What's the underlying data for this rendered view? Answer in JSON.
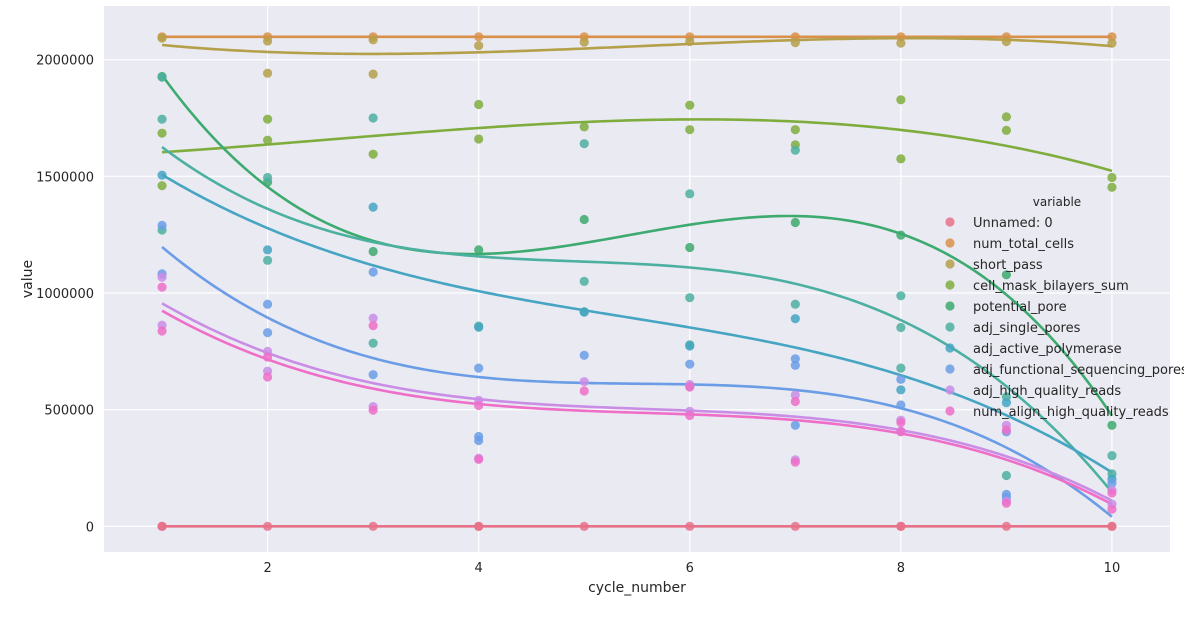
{
  "chart_data": {
    "type": "scatter",
    "style": "seaborn darkgrid lmplot with polynomial regression fits (order 3)",
    "xlabel": "cycle_number",
    "ylabel": "value",
    "xlim": [
      0.45,
      10.55
    ],
    "ylim": [
      -110000,
      2230000
    ],
    "x_ticks": [
      2,
      4,
      6,
      8,
      10
    ],
    "y_ticks": [
      0,
      500000,
      1000000,
      1500000,
      2000000
    ],
    "y_tick_labels": [
      "0",
      "500000",
      "1000000",
      "1500000",
      "2000000"
    ],
    "grid": true,
    "background_color": "#eaeaf2",
    "grid_color": "#ffffff",
    "legend_title": "variable",
    "legend_position": "right",
    "fit_order": 3,
    "x": [
      1,
      2,
      3,
      4,
      5,
      6,
      7,
      8,
      9,
      10
    ],
    "series": [
      {
        "name": "Unnamed: 0",
        "color": "#e8718a",
        "points": [
          [
            1,
            0
          ],
          [
            2,
            0
          ],
          [
            3,
            0
          ],
          [
            4,
            0
          ],
          [
            5,
            0
          ],
          [
            6,
            0
          ],
          [
            7,
            0
          ],
          [
            8,
            0
          ],
          [
            9,
            0
          ],
          [
            10,
            0
          ],
          [
            1,
            0
          ],
          [
            4,
            0
          ],
          [
            8,
            0
          ],
          [
            10,
            0
          ]
        ]
      },
      {
        "name": "num_total_cells",
        "color": "#d9904a",
        "points": [
          [
            1,
            2098000
          ],
          [
            2,
            2098000
          ],
          [
            3,
            2098000
          ],
          [
            4,
            2098000
          ],
          [
            5,
            2098000
          ],
          [
            6,
            2098000
          ],
          [
            7,
            2098000
          ],
          [
            8,
            2098000
          ],
          [
            9,
            2098000
          ],
          [
            10,
            2098000
          ]
        ]
      },
      {
        "name": "short_pass",
        "color": "#b5a04a",
        "points": [
          [
            1,
            2093000
          ],
          [
            2,
            1942000
          ],
          [
            2,
            2080000
          ],
          [
            3,
            1938000
          ],
          [
            3,
            2085000
          ],
          [
            4,
            2060000
          ],
          [
            5,
            2075000
          ],
          [
            6,
            2078000
          ],
          [
            7,
            2073000
          ],
          [
            8,
            2071000
          ],
          [
            9,
            2078000
          ],
          [
            10,
            2071000
          ]
        ]
      },
      {
        "name": "cell_mask_bilayers_sum",
        "color": "#7fad3d",
        "points": [
          [
            1,
            1460000
          ],
          [
            1,
            1685000
          ],
          [
            2,
            1655000
          ],
          [
            2,
            1745000
          ],
          [
            3,
            1595000
          ],
          [
            4,
            1660000
          ],
          [
            4,
            1808000
          ],
          [
            5,
            1712000
          ],
          [
            6,
            1700000
          ],
          [
            6,
            1805000
          ],
          [
            7,
            1700000
          ],
          [
            7,
            1635000
          ],
          [
            8,
            1575000
          ],
          [
            8,
            1828000
          ],
          [
            9,
            1697000
          ],
          [
            9,
            1755000
          ],
          [
            10,
            1495000
          ],
          [
            10,
            1453000
          ]
        ]
      },
      {
        "name": "potential_pore",
        "color": "#3daa6f",
        "points": [
          [
            1,
            1928000
          ],
          [
            2,
            1475000
          ],
          [
            3,
            1178000
          ],
          [
            4,
            1185000
          ],
          [
            5,
            1315000
          ],
          [
            6,
            1195000
          ],
          [
            7,
            1302000
          ],
          [
            8,
            1248000
          ],
          [
            9,
            1078000
          ],
          [
            10,
            433000
          ]
        ]
      },
      {
        "name": "adj_single_pores",
        "color": "#4cb0a0",
        "points": [
          [
            1,
            1745000
          ],
          [
            1,
            1925000
          ],
          [
            1,
            1270000
          ],
          [
            2,
            1495000
          ],
          [
            2,
            1140000
          ],
          [
            3,
            785000
          ],
          [
            3,
            1750000
          ],
          [
            4,
            858000
          ],
          [
            5,
            1640000
          ],
          [
            5,
            1050000
          ],
          [
            5,
            920000
          ],
          [
            6,
            1425000
          ],
          [
            6,
            980000
          ],
          [
            6,
            778000
          ],
          [
            7,
            1612000
          ],
          [
            7,
            952000
          ],
          [
            8,
            988000
          ],
          [
            8,
            852000
          ],
          [
            8,
            678000
          ],
          [
            9,
            555000
          ],
          [
            9,
            218000
          ],
          [
            10,
            303000
          ],
          [
            10,
            225000
          ]
        ]
      },
      {
        "name": "adj_active_polymerase",
        "color": "#45a5c2",
        "points": [
          [
            1,
            1505000
          ],
          [
            2,
            1185000
          ],
          [
            3,
            1368000
          ],
          [
            4,
            853000
          ],
          [
            5,
            918000
          ],
          [
            6,
            773000
          ],
          [
            7,
            890000
          ],
          [
            8,
            585000
          ],
          [
            9,
            530000
          ],
          [
            10,
            203000
          ]
        ]
      },
      {
        "name": "adj_functional_sequencing_pores",
        "color": "#6b9de6",
        "points": [
          [
            1,
            1290000
          ],
          [
            1,
            1082000
          ],
          [
            2,
            952000
          ],
          [
            2,
            830000
          ],
          [
            3,
            1090000
          ],
          [
            3,
            650000
          ],
          [
            4,
            678000
          ],
          [
            4,
            385000
          ],
          [
            4,
            368000
          ],
          [
            5,
            733000
          ],
          [
            6,
            600000
          ],
          [
            6,
            695000
          ],
          [
            7,
            718000
          ],
          [
            7,
            690000
          ],
          [
            7,
            433000
          ],
          [
            8,
            630000
          ],
          [
            8,
            520000
          ],
          [
            9,
            405000
          ],
          [
            9,
            137000
          ],
          [
            9,
            123000
          ],
          [
            10,
            185000
          ]
        ]
      },
      {
        "name": "adj_high_quality_reads",
        "color": "#c98de6",
        "points": [
          [
            1,
            862000
          ],
          [
            1,
            1068000
          ],
          [
            2,
            750000
          ],
          [
            2,
            665000
          ],
          [
            3,
            892000
          ],
          [
            3,
            513000
          ],
          [
            4,
            540000
          ],
          [
            4,
            292000
          ],
          [
            5,
            620000
          ],
          [
            6,
            608000
          ],
          [
            6,
            493000
          ],
          [
            7,
            563000
          ],
          [
            7,
            285000
          ],
          [
            8,
            455000
          ],
          [
            8,
            408000
          ],
          [
            9,
            433000
          ],
          [
            9,
            108000
          ],
          [
            10,
            155000
          ],
          [
            10,
            95000
          ]
        ]
      },
      {
        "name": "num_align_high_quality_reads",
        "color": "#ee6ec8",
        "points": [
          [
            1,
            837000
          ],
          [
            1,
            1025000
          ],
          [
            2,
            640000
          ],
          [
            2,
            725000
          ],
          [
            3,
            860000
          ],
          [
            3,
            498000
          ],
          [
            4,
            518000
          ],
          [
            4,
            287000
          ],
          [
            5,
            580000
          ],
          [
            6,
            597000
          ],
          [
            6,
            475000
          ],
          [
            7,
            535000
          ],
          [
            7,
            275000
          ],
          [
            8,
            405000
          ],
          [
            8,
            445000
          ],
          [
            9,
            413000
          ],
          [
            9,
            99000
          ],
          [
            10,
            143000
          ],
          [
            10,
            73000
          ]
        ]
      }
    ]
  }
}
